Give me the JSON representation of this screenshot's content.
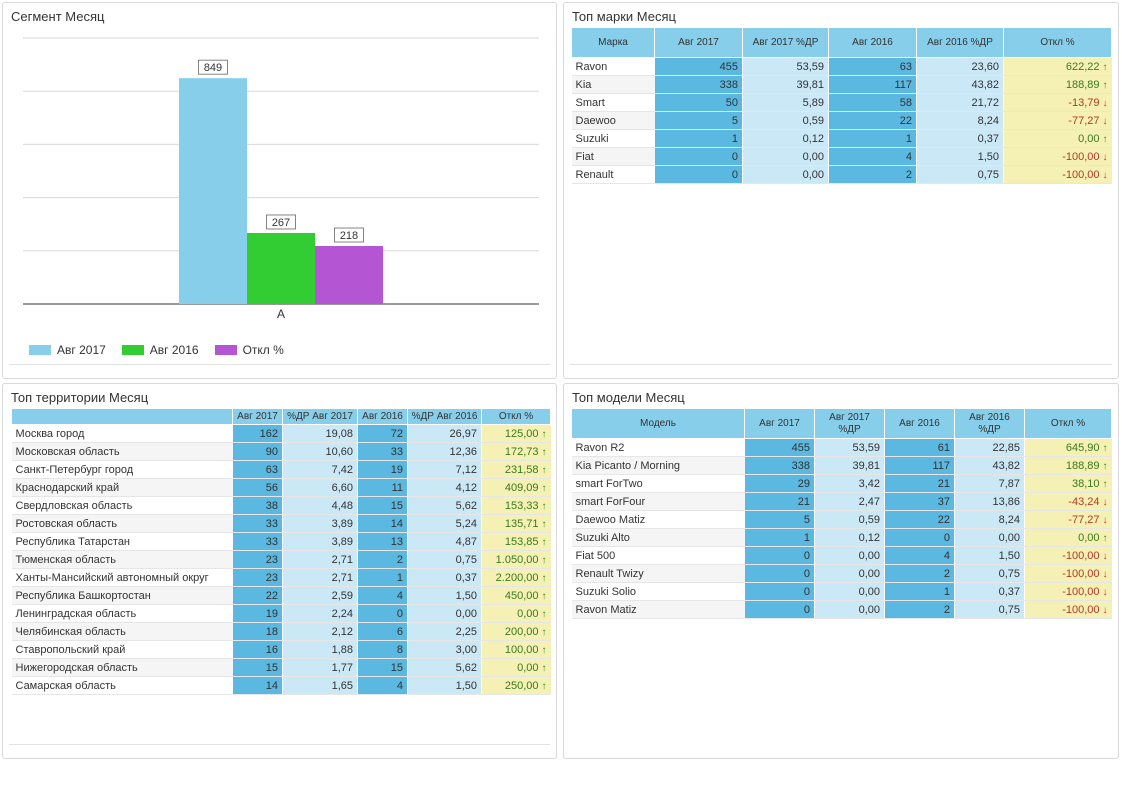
{
  "colors": {
    "series_2017": "#87ceeb",
    "series_2016": "#32cd32",
    "series_dev": "#b455d4",
    "header_bg": "#87ceeb",
    "cell_strong": "#5bb8e0",
    "cell_light": "#cbe8f6",
    "cell_dev": "#f5f0b3",
    "up_arrow": "#3b8a1f",
    "down_arrow": "#c0392b"
  },
  "segment": {
    "title": "Сегмент Месяц",
    "legend": [
      {
        "label": "Авг 2017",
        "color": "#87ceeb"
      },
      {
        "label": "Авг 2016",
        "color": "#32cd32"
      },
      {
        "label": "Откл %",
        "color": "#b455d4"
      }
    ]
  },
  "chart_data": {
    "type": "bar",
    "categories": [
      "A"
    ],
    "series": [
      {
        "name": "Авг 2017",
        "values": [
          849
        ]
      },
      {
        "name": "Авг 2016",
        "values": [
          267
        ]
      },
      {
        "name": "Откл %",
        "values": [
          218
        ]
      }
    ],
    "ylim": [
      0,
      1000
    ],
    "grid": true,
    "legend": "bottom-left",
    "data_labels": true
  },
  "brands": {
    "title": "Топ марки Месяц",
    "headers": [
      "Марка",
      "Авг 2017",
      "Авг 2017 %ДР",
      "Авг 2016",
      "Авг 2016 %ДР",
      "Откл %"
    ],
    "rows": [
      {
        "name": "Ravon",
        "v1": "455",
        "p1": "53,59",
        "v2": "63",
        "p2": "23,60",
        "dev": "622,22",
        "dir": "up"
      },
      {
        "name": "Kia",
        "v1": "338",
        "p1": "39,81",
        "v2": "117",
        "p2": "43,82",
        "dev": "188,89",
        "dir": "up"
      },
      {
        "name": "Smart",
        "v1": "50",
        "p1": "5,89",
        "v2": "58",
        "p2": "21,72",
        "dev": "-13,79",
        "dir": "down"
      },
      {
        "name": "Daewoo",
        "v1": "5",
        "p1": "0,59",
        "v2": "22",
        "p2": "8,24",
        "dev": "-77,27",
        "dir": "down"
      },
      {
        "name": "Suzuki",
        "v1": "1",
        "p1": "0,12",
        "v2": "1",
        "p2": "0,37",
        "dev": "0,00",
        "dir": "up"
      },
      {
        "name": "Fiat",
        "v1": "0",
        "p1": "0,00",
        "v2": "4",
        "p2": "1,50",
        "dev": "-100,00",
        "dir": "down"
      },
      {
        "name": "Renault",
        "v1": "0",
        "p1": "0,00",
        "v2": "2",
        "p2": "0,75",
        "dev": "-100,00",
        "dir": "down"
      }
    ]
  },
  "territories": {
    "title": "Топ территории Месяц",
    "headers": [
      "",
      "Авг 2017",
      "%ДР Авг 2017",
      "Авг 2016",
      "%ДР Авг 2016",
      "Откл %"
    ],
    "rows": [
      {
        "name": "Москва город",
        "v1": "162",
        "p1": "19,08",
        "v2": "72",
        "p2": "26,97",
        "dev": "125,00",
        "dir": "up"
      },
      {
        "name": "Московская область",
        "v1": "90",
        "p1": "10,60",
        "v2": "33",
        "p2": "12,36",
        "dev": "172,73",
        "dir": "up"
      },
      {
        "name": "Санкт-Петербург город",
        "v1": "63",
        "p1": "7,42",
        "v2": "19",
        "p2": "7,12",
        "dev": "231,58",
        "dir": "up"
      },
      {
        "name": "Краснодарский край",
        "v1": "56",
        "p1": "6,60",
        "v2": "11",
        "p2": "4,12",
        "dev": "409,09",
        "dir": "up"
      },
      {
        "name": "Свердловская область",
        "v1": "38",
        "p1": "4,48",
        "v2": "15",
        "p2": "5,62",
        "dev": "153,33",
        "dir": "up"
      },
      {
        "name": "Ростовская область",
        "v1": "33",
        "p1": "3,89",
        "v2": "14",
        "p2": "5,24",
        "dev": "135,71",
        "dir": "up"
      },
      {
        "name": "Республика Татарстан",
        "v1": "33",
        "p1": "3,89",
        "v2": "13",
        "p2": "4,87",
        "dev": "153,85",
        "dir": "up"
      },
      {
        "name": "Тюменская область",
        "v1": "23",
        "p1": "2,71",
        "v2": "2",
        "p2": "0,75",
        "dev": "1.050,00",
        "dir": "up"
      },
      {
        "name": "Ханты-Мансийский автономный округ",
        "v1": "23",
        "p1": "2,71",
        "v2": "1",
        "p2": "0,37",
        "dev": "2.200,00",
        "dir": "up"
      },
      {
        "name": "Республика Башкортостан",
        "v1": "22",
        "p1": "2,59",
        "v2": "4",
        "p2": "1,50",
        "dev": "450,00",
        "dir": "up"
      },
      {
        "name": "Ленинградская область",
        "v1": "19",
        "p1": "2,24",
        "v2": "0",
        "p2": "0,00",
        "dev": "0,00",
        "dir": "up"
      },
      {
        "name": "Челябинская область",
        "v1": "18",
        "p1": "2,12",
        "v2": "6",
        "p2": "2,25",
        "dev": "200,00",
        "dir": "up"
      },
      {
        "name": "Ставропольский край",
        "v1": "16",
        "p1": "1,88",
        "v2": "8",
        "p2": "3,00",
        "dev": "100,00",
        "dir": "up"
      },
      {
        "name": "Нижегородская область",
        "v1": "15",
        "p1": "1,77",
        "v2": "15",
        "p2": "5,62",
        "dev": "0,00",
        "dir": "up"
      },
      {
        "name": "Самарская область",
        "v1": "14",
        "p1": "1,65",
        "v2": "4",
        "p2": "1,50",
        "dev": "250,00",
        "dir": "up"
      }
    ]
  },
  "models": {
    "title": "Топ модели Месяц",
    "headers": [
      "Модель",
      "Авг 2017",
      "Авг 2017 %ДР",
      "Авг 2016",
      "Авг 2016 %ДР",
      "Откл %"
    ],
    "rows": [
      {
        "name": "Ravon R2",
        "v1": "455",
        "p1": "53,59",
        "v2": "61",
        "p2": "22,85",
        "dev": "645,90",
        "dir": "up"
      },
      {
        "name": "Kia Picanto / Morning",
        "v1": "338",
        "p1": "39,81",
        "v2": "117",
        "p2": "43,82",
        "dev": "188,89",
        "dir": "up"
      },
      {
        "name": "smart ForTwo",
        "v1": "29",
        "p1": "3,42",
        "v2": "21",
        "p2": "7,87",
        "dev": "38,10",
        "dir": "up"
      },
      {
        "name": "smart ForFour",
        "v1": "21",
        "p1": "2,47",
        "v2": "37",
        "p2": "13,86",
        "dev": "-43,24",
        "dir": "down"
      },
      {
        "name": "Daewoo Matiz",
        "v1": "5",
        "p1": "0,59",
        "v2": "22",
        "p2": "8,24",
        "dev": "-77,27",
        "dir": "down"
      },
      {
        "name": "Suzuki Alto",
        "v1": "1",
        "p1": "0,12",
        "v2": "0",
        "p2": "0,00",
        "dev": "0,00",
        "dir": "up"
      },
      {
        "name": "Fiat 500",
        "v1": "0",
        "p1": "0,00",
        "v2": "4",
        "p2": "1,50",
        "dev": "-100,00",
        "dir": "down"
      },
      {
        "name": "Renault Twizy",
        "v1": "0",
        "p1": "0,00",
        "v2": "2",
        "p2": "0,75",
        "dev": "-100,00",
        "dir": "down"
      },
      {
        "name": "Suzuki Solio",
        "v1": "0",
        "p1": "0,00",
        "v2": "1",
        "p2": "0,37",
        "dev": "-100,00",
        "dir": "down"
      },
      {
        "name": "Ravon Matiz",
        "v1": "0",
        "p1": "0,00",
        "v2": "2",
        "p2": "0,75",
        "dev": "-100,00",
        "dir": "down"
      }
    ]
  }
}
